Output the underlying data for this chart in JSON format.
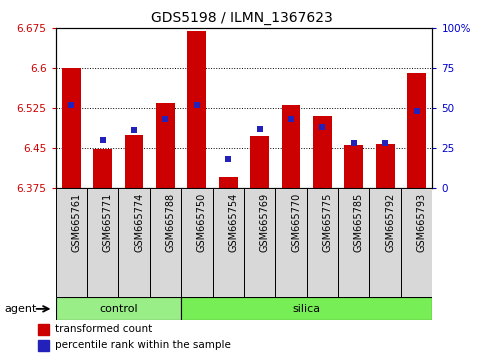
{
  "title": "GDS5198 / ILMN_1367623",
  "samples": [
    "GSM665761",
    "GSM665771",
    "GSM665774",
    "GSM665788",
    "GSM665750",
    "GSM665754",
    "GSM665769",
    "GSM665770",
    "GSM665775",
    "GSM665785",
    "GSM665792",
    "GSM665793"
  ],
  "red_values": [
    6.6,
    6.447,
    6.475,
    6.535,
    6.67,
    6.395,
    6.472,
    6.53,
    6.51,
    6.455,
    6.458,
    6.59
  ],
  "blue_percentiles": [
    52,
    30,
    36,
    43,
    52,
    18,
    37,
    43,
    38,
    28,
    28,
    48
  ],
  "ymin": 6.375,
  "ymax": 6.675,
  "y2min": 0,
  "y2max": 100,
  "yticks": [
    6.375,
    6.45,
    6.525,
    6.6,
    6.675
  ],
  "y2ticks": [
    0,
    25,
    50,
    75,
    100
  ],
  "dotted_lines": [
    6.45,
    6.525,
    6.6
  ],
  "bar_color": "#cc0000",
  "dot_color": "#2222bb",
  "control_color": "#99ee88",
  "silica_color": "#77ee55",
  "ticklabel_color_left": "#cc0000",
  "ticklabel_color_right": "#0000cc",
  "n_control": 4,
  "n_silica": 8,
  "bar_width": 0.6,
  "legend_red": "transformed count",
  "legend_blue": "percentile rank within the sample",
  "agent_label": "agent",
  "control_label": "control",
  "silica_label": "silica"
}
